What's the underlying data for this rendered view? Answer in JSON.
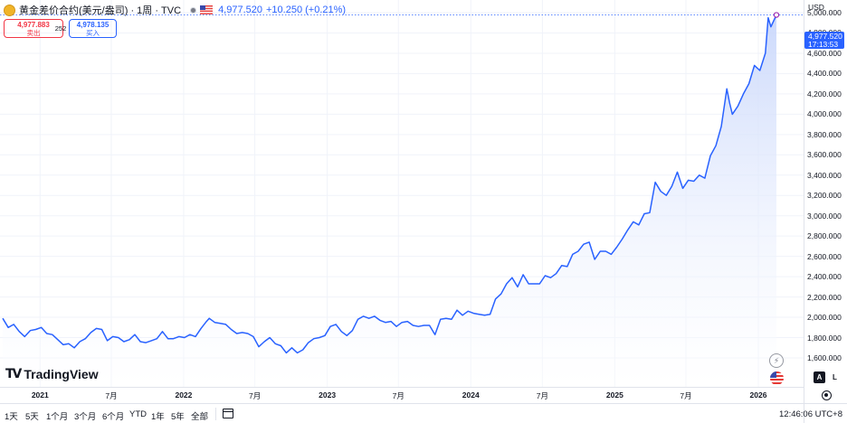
{
  "header": {
    "symbol_title": "黄金差价合约(美元/盎司) · 1周 · TVC",
    "last_price": "4,977.520",
    "change": "+10.250 (+0.21%)"
  },
  "trade": {
    "sell_price": "4,977.883",
    "sell_label": "卖出",
    "spread": "252",
    "buy_price": "4,978.135",
    "buy_label": "买入"
  },
  "axis": {
    "currency": "USD",
    "last_tag_price": "4,977.520",
    "last_tag_time": "17:13:53",
    "y_tick_labels": [
      "1,600.000",
      "1,800.000",
      "2,000.000",
      "2,200.000",
      "2,400.000",
      "2,600.000",
      "2,800.000",
      "3,000.000",
      "3,200.000",
      "3,400.000",
      "3,600.000",
      "3,800.000",
      "4,000.000",
      "4,200.000",
      "4,400.000",
      "4,600.000",
      "4,800.000",
      "5,000.000"
    ],
    "x_tick_labels": [
      {
        "label": "2021",
        "major": true
      },
      {
        "label": "7月",
        "major": false
      },
      {
        "label": "2022",
        "major": true
      },
      {
        "label": "7月",
        "major": false
      },
      {
        "label": "2023",
        "major": true
      },
      {
        "label": "7月",
        "major": false
      },
      {
        "label": "2024",
        "major": true
      },
      {
        "label": "7月",
        "major": false
      },
      {
        "label": "2025",
        "major": true
      },
      {
        "label": "7月",
        "major": false
      },
      {
        "label": "2026",
        "major": true
      }
    ],
    "auto_label": "A",
    "log_label": "L"
  },
  "logo": {
    "text": "TradingView"
  },
  "toolbar": {
    "ranges": [
      "1天",
      "5天",
      "1个月",
      "3个月",
      "6个月",
      "YTD",
      "1年",
      "5年",
      "全部"
    ],
    "clock": "12:46:06 UTC+8"
  },
  "colors": {
    "line": "#2962ff",
    "fill_top": "#c9d7fb",
    "fill_bottom": "#ffffff",
    "sell": "#f23645",
    "buy": "#2962ff"
  },
  "chart_data": {
    "type": "area",
    "title": "黄金差价合约(美元/盎司) · 1周 · TVC",
    "xlabel": "",
    "ylabel": "",
    "x_range": [
      "2020-09-28",
      "2026-02-16"
    ],
    "ylim": [
      1500,
      5050
    ],
    "grid": true,
    "legend": "top-left",
    "series": [
      {
        "values": [
          {
            "x": "2020-09-28",
            "y": 1990
          },
          {
            "x": "2020-10-12",
            "y": 1900
          },
          {
            "x": "2020-10-26",
            "y": 1930
          },
          {
            "x": "2020-11-09",
            "y": 1860
          },
          {
            "x": "2020-11-23",
            "y": 1810
          },
          {
            "x": "2020-12-07",
            "y": 1870
          },
          {
            "x": "2020-12-21",
            "y": 1880
          },
          {
            "x": "2021-01-04",
            "y": 1900
          },
          {
            "x": "2021-01-18",
            "y": 1840
          },
          {
            "x": "2021-02-01",
            "y": 1830
          },
          {
            "x": "2021-02-15",
            "y": 1780
          },
          {
            "x": "2021-03-01",
            "y": 1730
          },
          {
            "x": "2021-03-15",
            "y": 1740
          },
          {
            "x": "2021-03-29",
            "y": 1700
          },
          {
            "x": "2021-04-12",
            "y": 1760
          },
          {
            "x": "2021-04-26",
            "y": 1790
          },
          {
            "x": "2021-05-10",
            "y": 1850
          },
          {
            "x": "2021-05-24",
            "y": 1890
          },
          {
            "x": "2021-06-07",
            "y": 1880
          },
          {
            "x": "2021-06-21",
            "y": 1770
          },
          {
            "x": "2021-07-05",
            "y": 1810
          },
          {
            "x": "2021-07-19",
            "y": 1800
          },
          {
            "x": "2021-08-02",
            "y": 1760
          },
          {
            "x": "2021-08-16",
            "y": 1780
          },
          {
            "x": "2021-08-30",
            "y": 1830
          },
          {
            "x": "2021-09-13",
            "y": 1760
          },
          {
            "x": "2021-09-27",
            "y": 1750
          },
          {
            "x": "2021-10-11",
            "y": 1770
          },
          {
            "x": "2021-10-25",
            "y": 1790
          },
          {
            "x": "2021-11-08",
            "y": 1860
          },
          {
            "x": "2021-11-22",
            "y": 1790
          },
          {
            "x": "2021-12-06",
            "y": 1790
          },
          {
            "x": "2021-12-20",
            "y": 1810
          },
          {
            "x": "2022-01-03",
            "y": 1800
          },
          {
            "x": "2022-01-17",
            "y": 1830
          },
          {
            "x": "2022-01-31",
            "y": 1810
          },
          {
            "x": "2022-02-14",
            "y": 1890
          },
          {
            "x": "2022-02-28",
            "y": 1960
          },
          {
            "x": "2022-03-07",
            "y": 1990
          },
          {
            "x": "2022-03-21",
            "y": 1950
          },
          {
            "x": "2022-04-04",
            "y": 1940
          },
          {
            "x": "2022-04-18",
            "y": 1930
          },
          {
            "x": "2022-05-02",
            "y": 1880
          },
          {
            "x": "2022-05-16",
            "y": 1840
          },
          {
            "x": "2022-05-30",
            "y": 1850
          },
          {
            "x": "2022-06-13",
            "y": 1840
          },
          {
            "x": "2022-06-27",
            "y": 1810
          },
          {
            "x": "2022-07-11",
            "y": 1710
          },
          {
            "x": "2022-07-25",
            "y": 1760
          },
          {
            "x": "2022-08-08",
            "y": 1800
          },
          {
            "x": "2022-08-22",
            "y": 1740
          },
          {
            "x": "2022-09-05",
            "y": 1720
          },
          {
            "x": "2022-09-19",
            "y": 1650
          },
          {
            "x": "2022-10-03",
            "y": 1700
          },
          {
            "x": "2022-10-17",
            "y": 1650
          },
          {
            "x": "2022-10-31",
            "y": 1680
          },
          {
            "x": "2022-11-14",
            "y": 1750
          },
          {
            "x": "2022-11-28",
            "y": 1790
          },
          {
            "x": "2022-12-12",
            "y": 1800
          },
          {
            "x": "2022-12-26",
            "y": 1820
          },
          {
            "x": "2023-01-09",
            "y": 1910
          },
          {
            "x": "2023-01-23",
            "y": 1930
          },
          {
            "x": "2023-02-06",
            "y": 1860
          },
          {
            "x": "2023-02-20",
            "y": 1820
          },
          {
            "x": "2023-03-06",
            "y": 1870
          },
          {
            "x": "2023-03-20",
            "y": 1980
          },
          {
            "x": "2023-04-03",
            "y": 2010
          },
          {
            "x": "2023-04-17",
            "y": 1990
          },
          {
            "x": "2023-05-01",
            "y": 2010
          },
          {
            "x": "2023-05-15",
            "y": 1970
          },
          {
            "x": "2023-05-29",
            "y": 1950
          },
          {
            "x": "2023-06-12",
            "y": 1960
          },
          {
            "x": "2023-06-26",
            "y": 1910
          },
          {
            "x": "2023-07-10",
            "y": 1950
          },
          {
            "x": "2023-07-24",
            "y": 1960
          },
          {
            "x": "2023-08-07",
            "y": 1920
          },
          {
            "x": "2023-08-21",
            "y": 1910
          },
          {
            "x": "2023-09-04",
            "y": 1920
          },
          {
            "x": "2023-09-18",
            "y": 1920
          },
          {
            "x": "2023-10-02",
            "y": 1830
          },
          {
            "x": "2023-10-16",
            "y": 1980
          },
          {
            "x": "2023-10-30",
            "y": 1990
          },
          {
            "x": "2023-11-13",
            "y": 1980
          },
          {
            "x": "2023-11-27",
            "y": 2070
          },
          {
            "x": "2023-12-11",
            "y": 2020
          },
          {
            "x": "2023-12-25",
            "y": 2060
          },
          {
            "x": "2024-01-08",
            "y": 2040
          },
          {
            "x": "2024-01-22",
            "y": 2030
          },
          {
            "x": "2024-02-05",
            "y": 2020
          },
          {
            "x": "2024-02-19",
            "y": 2030
          },
          {
            "x": "2024-03-04",
            "y": 2180
          },
          {
            "x": "2024-03-18",
            "y": 2230
          },
          {
            "x": "2024-04-01",
            "y": 2330
          },
          {
            "x": "2024-04-15",
            "y": 2390
          },
          {
            "x": "2024-04-29",
            "y": 2300
          },
          {
            "x": "2024-05-13",
            "y": 2420
          },
          {
            "x": "2024-05-27",
            "y": 2330
          },
          {
            "x": "2024-06-10",
            "y": 2330
          },
          {
            "x": "2024-06-24",
            "y": 2330
          },
          {
            "x": "2024-07-08",
            "y": 2410
          },
          {
            "x": "2024-07-22",
            "y": 2390
          },
          {
            "x": "2024-08-05",
            "y": 2430
          },
          {
            "x": "2024-08-19",
            "y": 2510
          },
          {
            "x": "2024-09-02",
            "y": 2500
          },
          {
            "x": "2024-09-16",
            "y": 2620
          },
          {
            "x": "2024-09-30",
            "y": 2650
          },
          {
            "x": "2024-10-14",
            "y": 2720
          },
          {
            "x": "2024-10-28",
            "y": 2740
          },
          {
            "x": "2024-11-11",
            "y": 2570
          },
          {
            "x": "2024-11-25",
            "y": 2650
          },
          {
            "x": "2024-12-09",
            "y": 2650
          },
          {
            "x": "2024-12-23",
            "y": 2620
          },
          {
            "x": "2025-01-06",
            "y": 2690
          },
          {
            "x": "2025-01-20",
            "y": 2770
          },
          {
            "x": "2025-02-03",
            "y": 2860
          },
          {
            "x": "2025-02-17",
            "y": 2940
          },
          {
            "x": "2025-03-03",
            "y": 2910
          },
          {
            "x": "2025-03-17",
            "y": 3020
          },
          {
            "x": "2025-03-31",
            "y": 3030
          },
          {
            "x": "2025-04-14",
            "y": 3330
          },
          {
            "x": "2025-04-28",
            "y": 3240
          },
          {
            "x": "2025-05-12",
            "y": 3200
          },
          {
            "x": "2025-05-26",
            "y": 3290
          },
          {
            "x": "2025-06-09",
            "y": 3430
          },
          {
            "x": "2025-06-23",
            "y": 3270
          },
          {
            "x": "2025-07-07",
            "y": 3350
          },
          {
            "x": "2025-07-21",
            "y": 3340
          },
          {
            "x": "2025-08-04",
            "y": 3400
          },
          {
            "x": "2025-08-18",
            "y": 3370
          },
          {
            "x": "2025-09-01",
            "y": 3590
          },
          {
            "x": "2025-09-15",
            "y": 3690
          },
          {
            "x": "2025-09-29",
            "y": 3880
          },
          {
            "x": "2025-10-13",
            "y": 4250
          },
          {
            "x": "2025-10-20",
            "y": 4110
          },
          {
            "x": "2025-10-27",
            "y": 4000
          },
          {
            "x": "2025-11-10",
            "y": 4080
          },
          {
            "x": "2025-11-24",
            "y": 4200
          },
          {
            "x": "2025-12-08",
            "y": 4300
          },
          {
            "x": "2025-12-22",
            "y": 4480
          },
          {
            "x": "2026-01-05",
            "y": 4430
          },
          {
            "x": "2026-01-19",
            "y": 4600
          },
          {
            "x": "2026-01-26",
            "y": 4950
          },
          {
            "x": "2026-02-02",
            "y": 4860
          },
          {
            "x": "2026-02-09",
            "y": 4920
          },
          {
            "x": "2026-02-16",
            "y": 4977.52
          }
        ]
      }
    ]
  }
}
